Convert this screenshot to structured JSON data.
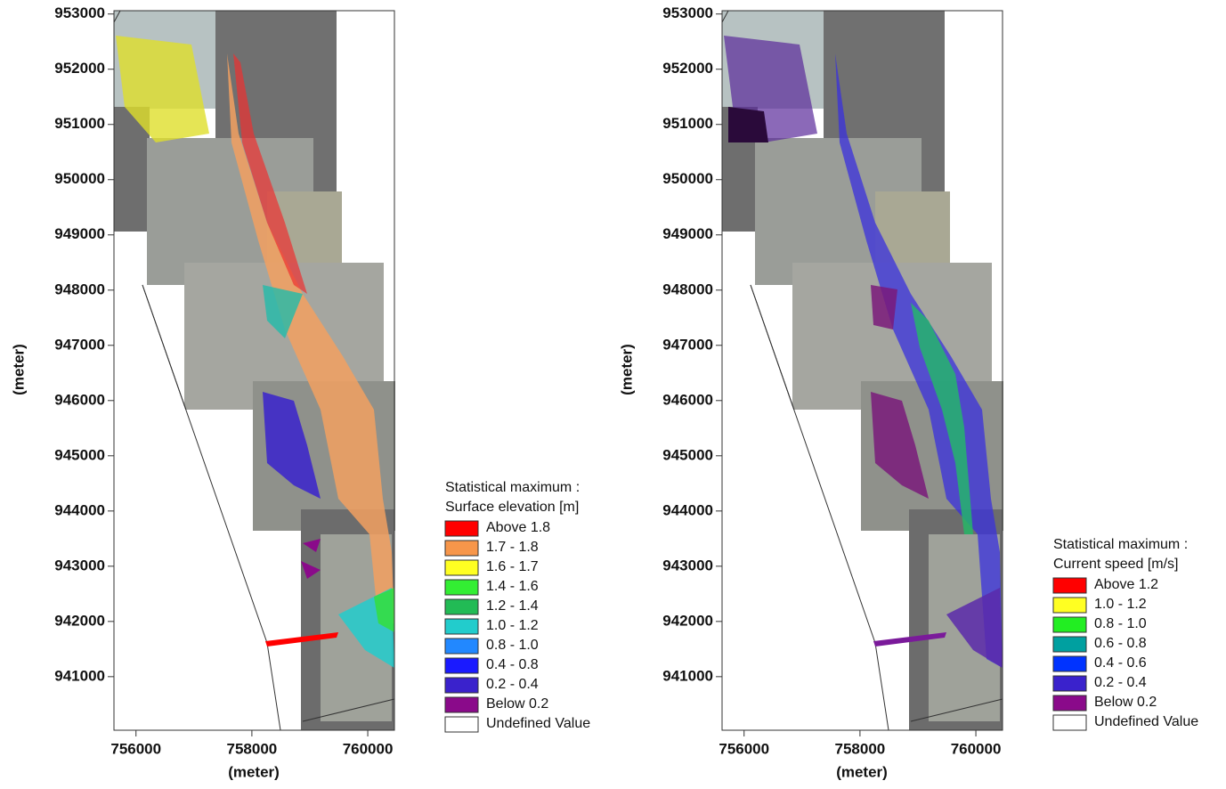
{
  "panels": [
    {
      "xlim": [
        755620,
        760460
      ],
      "ylim": [
        940030,
        953060
      ],
      "xticks": [
        756000,
        758000,
        760000
      ],
      "yticks": [
        941000,
        942000,
        943000,
        944000,
        945000,
        946000,
        947000,
        948000,
        949000,
        950000,
        951000,
        952000,
        953000
      ],
      "x_label": "(meter)",
      "y_label": "(meter)",
      "legend": {
        "title": [
          "Statistical maximum :",
          "Surface elevation [m]"
        ],
        "entries": [
          {
            "label": "Above 1.8",
            "color": "#ff0000"
          },
          {
            "label": "1.7 - 1.8",
            "color": "#f7964a"
          },
          {
            "label": "1.6 - 1.7",
            "color": "#ffff22"
          },
          {
            "label": "1.4 - 1.6",
            "color": "#33ee33"
          },
          {
            "label": "1.2 - 1.4",
            "color": "#22bb55"
          },
          {
            "label": "1.0 - 1.2",
            "color": "#22cccc"
          },
          {
            "label": "0.8 - 1.0",
            "color": "#2288ff"
          },
          {
            "label": "0.4 - 0.8",
            "color": "#1a1aff"
          },
          {
            "label": "0.2 - 0.4",
            "color": "#3a22cc"
          },
          {
            "label": "Below 0.2",
            "color": "#8a0a8a"
          },
          {
            "label": "Undefined Value",
            "color": "#ffffff"
          }
        ]
      }
    },
    {
      "xlim": [
        755620,
        760460
      ],
      "ylim": [
        940030,
        953060
      ],
      "xticks": [
        756000,
        758000,
        760000
      ],
      "yticks": [
        941000,
        942000,
        943000,
        944000,
        945000,
        946000,
        947000,
        948000,
        949000,
        950000,
        951000,
        952000,
        953000
      ],
      "x_label": "(meter)",
      "y_label": "(meter)",
      "legend": {
        "title": [
          "Statistical maximum :",
          "Current speed [m/s]"
        ],
        "entries": [
          {
            "label": "Above 1.2",
            "color": "#ff0000"
          },
          {
            "label": "1.0 - 1.2",
            "color": "#ffff22"
          },
          {
            "label": "0.8 - 1.0",
            "color": "#22ee22"
          },
          {
            "label": "0.6 - 0.8",
            "color": "#00a0a0"
          },
          {
            "label": "0.4 - 0.6",
            "color": "#0033ff"
          },
          {
            "label": "0.2 - 0.4",
            "color": "#3a22cc"
          },
          {
            "label": "Below 0.2",
            "color": "#8a0a8a"
          },
          {
            "label": "Undefined Value",
            "color": "#ffffff"
          }
        ]
      }
    }
  ]
}
